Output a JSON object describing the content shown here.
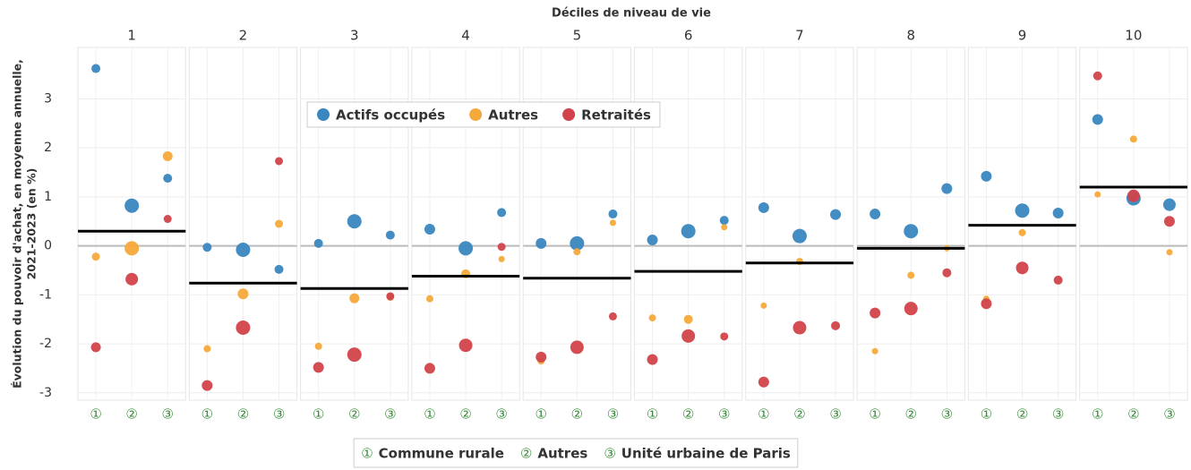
{
  "chart_data": {
    "type": "scatter",
    "title": "Déciles de niveau de vie",
    "y_label": [
      "Évolution du pouvoir d'achat, en moyenne annuelle,",
      "2021-2023 (en %)"
    ],
    "facets": [
      "1",
      "2",
      "3",
      "4",
      "5",
      "6",
      "7",
      "8",
      "9",
      "10"
    ],
    "categories": [
      "①",
      "②",
      "③"
    ],
    "category_legend": [
      {
        "symbol": "①",
        "label": "Commune rurale"
      },
      {
        "symbol": "②",
        "label": "Autres"
      },
      {
        "symbol": "③",
        "label": "Unité urbaine de Paris"
      }
    ],
    "series": [
      {
        "name": "Actifs occupés",
        "color": "#3a87c0",
        "values": [
          [
            3.62,
            0.82,
            1.38
          ],
          [
            -0.03,
            -0.08,
            -0.48
          ],
          [
            0.05,
            0.5,
            0.22
          ],
          [
            0.34,
            -0.05,
            0.68
          ],
          [
            0.05,
            0.05,
            0.65
          ],
          [
            0.12,
            0.3,
            0.52
          ],
          [
            0.78,
            0.2,
            0.64
          ],
          [
            0.65,
            0.3,
            1.17
          ],
          [
            1.42,
            0.72,
            0.67
          ],
          [
            2.58,
            0.97,
            0.84
          ]
        ],
        "sizes": [
          [
            5,
            8,
            5
          ],
          [
            5,
            8,
            5
          ],
          [
            5,
            8,
            5
          ],
          [
            6,
            8,
            5
          ],
          [
            6,
            8,
            5
          ],
          [
            6,
            8,
            5
          ],
          [
            6,
            8,
            6
          ],
          [
            6,
            8,
            6
          ],
          [
            6,
            8,
            6
          ],
          [
            6,
            8,
            7
          ]
        ]
      },
      {
        "name": "Autres",
        "color": "#f5a93a",
        "values": [
          [
            -0.22,
            -0.05,
            1.83
          ],
          [
            -2.1,
            -0.98,
            0.45
          ],
          [
            -2.05,
            -1.07,
            -1.05
          ],
          [
            -1.08,
            -0.57,
            -0.27
          ],
          [
            -2.35,
            -0.12,
            0.47
          ],
          [
            -1.47,
            -1.5,
            0.38
          ],
          [
            -1.22,
            -0.32,
            null
          ],
          [
            -2.15,
            -0.6,
            -0.05
          ],
          [
            -1.08,
            0.27,
            null
          ],
          [
            1.05,
            2.18,
            -0.13
          ]
        ],
        "sizes": [
          [
            4.5,
            8,
            5.5
          ],
          [
            4,
            6,
            4.5
          ],
          [
            4,
            5.5,
            4
          ],
          [
            4,
            5,
            3.5
          ],
          [
            4,
            4,
            3.5
          ],
          [
            4,
            5,
            3.5
          ],
          [
            3.5,
            4,
            null
          ],
          [
            3.5,
            4,
            3.5
          ],
          [
            3.5,
            4,
            null
          ],
          [
            3.5,
            4,
            3.5
          ]
        ]
      },
      {
        "name": "Retraités",
        "color": "#d1434a",
        "values": [
          [
            -2.07,
            -0.68,
            0.55
          ],
          [
            -2.85,
            -1.67,
            1.73
          ],
          [
            -2.48,
            -2.22,
            -1.03
          ],
          [
            -2.5,
            -2.03,
            -0.02
          ],
          [
            -2.27,
            -2.07,
            -1.44
          ],
          [
            -2.32,
            -1.84,
            -1.85
          ],
          [
            -2.78,
            -1.67,
            -1.63
          ],
          [
            -1.37,
            -1.28,
            -0.55
          ],
          [
            -1.18,
            -0.45,
            -0.7
          ],
          [
            3.47,
            1.02,
            0.5
          ]
        ],
        "sizes": [
          [
            5.5,
            7,
            4.5
          ],
          [
            6,
            8,
            4.5
          ],
          [
            6,
            8,
            4.5
          ],
          [
            6,
            7.5,
            4.5
          ],
          [
            6,
            7.5,
            4.5
          ],
          [
            6,
            7.5,
            4.5
          ],
          [
            6,
            7.5,
            5
          ],
          [
            6,
            7.5,
            5
          ],
          [
            6,
            7,
            5
          ],
          [
            5,
            7,
            6
          ]
        ]
      }
    ],
    "means": [
      0.3,
      -0.76,
      -0.87,
      -0.62,
      -0.66,
      -0.52,
      -0.35,
      -0.05,
      0.42,
      1.2
    ],
    "ylim": [
      -3.15,
      4.05
    ],
    "yticks": [
      -3,
      -2,
      -1,
      0,
      1,
      2,
      3
    ],
    "grid": true,
    "legend": "top-center"
  }
}
